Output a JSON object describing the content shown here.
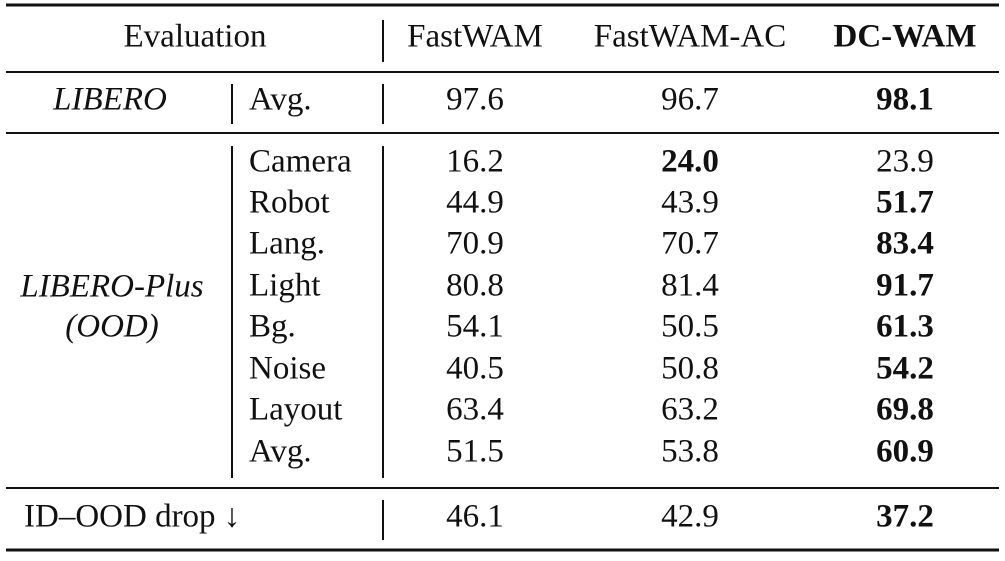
{
  "header": {
    "evaluation": "Evaluation",
    "columns": [
      "FastWAM",
      "FastWAM-AC",
      "DC-WAM"
    ]
  },
  "groups": [
    {
      "label_lines": [
        "LIBERO"
      ],
      "rows": [
        {
          "metric": "Avg.",
          "values": [
            "97.6",
            "96.7",
            "98.1"
          ]
        }
      ]
    },
    {
      "label_lines": [
        "LIBERO-Plus",
        "(OOD)"
      ],
      "rows": [
        {
          "metric": "Camera",
          "values": [
            "16.2",
            "24.0",
            "23.9"
          ]
        },
        {
          "metric": "Robot",
          "values": [
            "44.9",
            "43.9",
            "51.7"
          ]
        },
        {
          "metric": "Lang.",
          "values": [
            "70.9",
            "70.7",
            "83.4"
          ]
        },
        {
          "metric": "Light",
          "values": [
            "80.8",
            "81.4",
            "91.7"
          ]
        },
        {
          "metric": "Bg.",
          "values": [
            "54.1",
            "50.5",
            "61.3"
          ]
        },
        {
          "metric": "Noise",
          "values": [
            "40.5",
            "50.8",
            "54.2"
          ]
        },
        {
          "metric": "Layout",
          "values": [
            "63.4",
            "63.2",
            "69.8"
          ]
        },
        {
          "metric": "Avg.",
          "values": [
            "51.5",
            "53.8",
            "60.9"
          ]
        }
      ]
    }
  ],
  "summary": {
    "label": "ID–OOD drop ↓",
    "values": [
      "46.1",
      "42.9",
      "37.2"
    ]
  }
}
